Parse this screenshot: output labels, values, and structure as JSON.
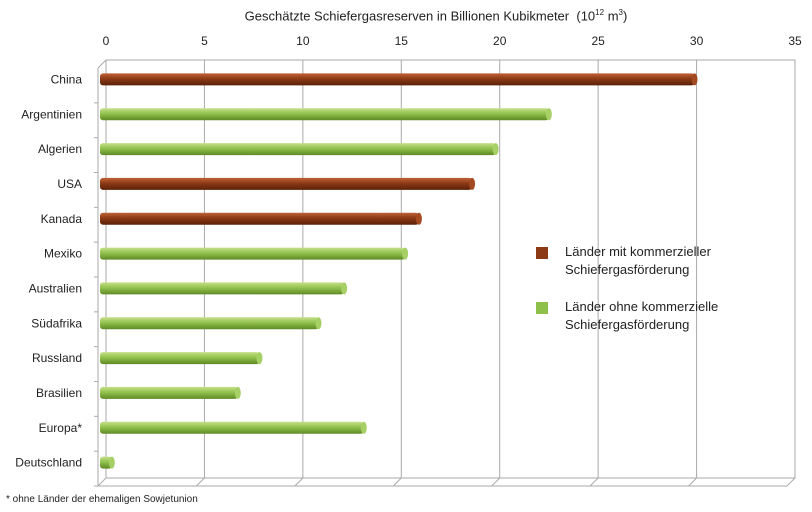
{
  "chart_data": {
    "type": "bar",
    "orientation": "horizontal",
    "title": "Geschätzte Schiefergasreserven in Billionen Kubikmeter",
    "title_unit": {
      "base": "10",
      "exp": "12",
      "unit": "m",
      "unit_exp": "3"
    },
    "categories": [
      "China",
      "Argentinien",
      "Algerien",
      "USA",
      "Kanada",
      "Mexiko",
      "Australien",
      "Südafrika",
      "Russland",
      "Brasilien",
      "Europa*",
      "Deutschland"
    ],
    "values": [
      30.2,
      22.8,
      20.1,
      18.9,
      16.2,
      15.5,
      12.4,
      11.1,
      8.1,
      7.0,
      13.4,
      0.6
    ],
    "groups": [
      "commercial",
      "non",
      "non",
      "commercial",
      "commercial",
      "non",
      "non",
      "non",
      "non",
      "non",
      "non",
      "non"
    ],
    "xlim": [
      0,
      35
    ],
    "xticks": [
      "0",
      "5",
      "10",
      "15",
      "20",
      "25",
      "30",
      "35"
    ],
    "grid": true,
    "legend": [
      {
        "key": "commercial",
        "label_line1": "Länder mit kommerzieller",
        "label_line2": "Schiefergasförderung",
        "color": "#8b3a15"
      },
      {
        "key": "non",
        "label_line1": "Länder ohne kommerzielle",
        "label_line2": "Schiefergasförderung",
        "color": "#8fc04a"
      }
    ],
    "legend_position": "right",
    "footnote": "* ohne Länder der ehemaligen Sowjetunion"
  }
}
